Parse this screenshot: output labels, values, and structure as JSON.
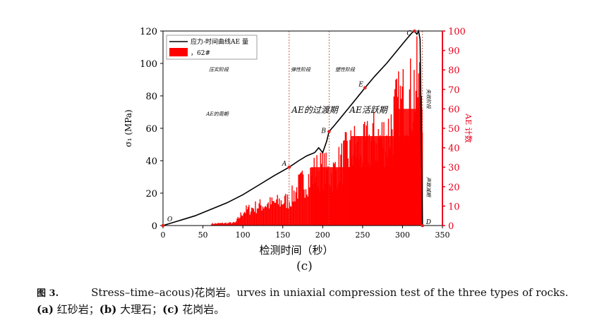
{
  "chart_data": {
    "type": "line",
    "subplot_label": "(c)",
    "xlabel": "检测时间（秒）",
    "ylabel_left": "σ₁ (MPa)",
    "ylabel_right": "AE 计数",
    "xlim": [
      0,
      350
    ],
    "ylim_left": [
      0,
      120
    ],
    "ylim_right": [
      0,
      100
    ],
    "x_ticks": [
      "0",
      "50",
      "100",
      "150",
      "200",
      "250",
      "300",
      "350"
    ],
    "y_left_ticks": [
      "0",
      "20",
      "40",
      "60",
      "80",
      "100",
      "120"
    ],
    "y_right_ticks": [
      "0",
      "10",
      "20",
      "30",
      "40",
      "50",
      "60",
      "70",
      "80",
      "90",
      "100"
    ],
    "legend": {
      "line_label": "应力-时间曲线AE 量",
      "bar_label": "，62#"
    },
    "phase_lines_x": [
      158,
      208,
      325
    ],
    "phase_labels": [
      "压实阶段",
      "弹性阶段",
      "塑性阶段",
      "失效阶段",
      "AE的周期",
      "AE的过渡期",
      "AE活跃期",
      "声致减期"
    ],
    "points": [
      {
        "label": "O",
        "x": 0,
        "y": 0
      },
      {
        "label": "A",
        "x": 158,
        "y": 36
      },
      {
        "label": "B",
        "x": 208,
        "y": 58
      },
      {
        "label": "E",
        "x": 253,
        "y": 85
      },
      {
        "label": "C",
        "x": 315,
        "y": 120
      },
      {
        "label": "D",
        "x": 325,
        "y": 0
      }
    ],
    "stress_series": {
      "name": "stress",
      "x": [
        0,
        20,
        40,
        60,
        80,
        100,
        120,
        140,
        158,
        170,
        180,
        190,
        195,
        200,
        205,
        208,
        215,
        225,
        240,
        253,
        265,
        280,
        295,
        305,
        312,
        315,
        318,
        320,
        322,
        325
      ],
      "y": [
        0,
        3,
        6,
        10,
        14,
        19,
        25,
        31,
        36,
        40,
        43,
        45,
        48,
        45,
        52,
        58,
        62,
        68,
        77,
        85,
        92,
        100,
        109,
        115,
        119,
        120,
        118,
        120,
        115,
        0
      ]
    },
    "ae_envelope": {
      "name": "AE counts",
      "x": [
        0,
        90,
        100,
        120,
        140,
        158,
        170,
        185,
        190,
        200,
        210,
        230,
        240,
        250,
        260,
        280,
        285,
        290,
        300,
        305,
        310,
        315,
        320,
        325
      ],
      "y": [
        0,
        2,
        10,
        14,
        16,
        18,
        28,
        35,
        38,
        40,
        35,
        50,
        55,
        52,
        60,
        62,
        70,
        78,
        85,
        92,
        88,
        100,
        95,
        100
      ]
    }
  },
  "caption": {
    "fig_number": "图 3.",
    "line1_text": "Stress–time–acous",
    "line1_overlay": ")花岗岩。",
    "line1_rest": "urves in uniaxial compression test of the three types of rocks.",
    "line2_a": "(a)",
    "line2_a_text": " 红砂岩；",
    "line2_b": "(b)",
    "line2_b_text": " 大理石；",
    "line2_c": "(c)",
    "line2_c_text": " 花岗岩。"
  },
  "colors": {
    "ae": "#ff0000",
    "stress": "#000000",
    "right_axis": "#e8001c"
  }
}
